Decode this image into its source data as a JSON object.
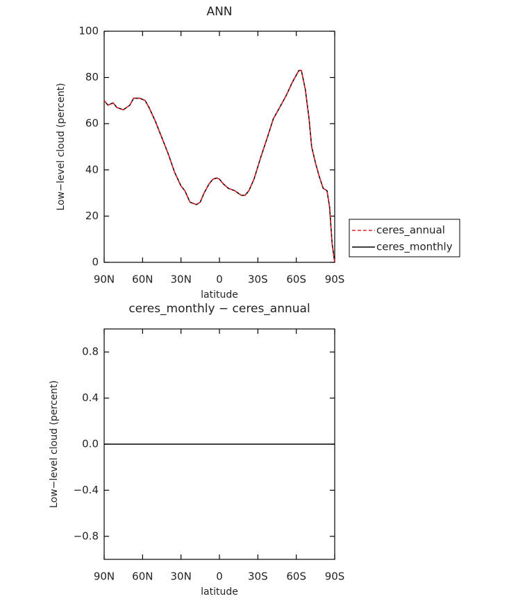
{
  "chart_data": [
    {
      "type": "line",
      "title": "ANN",
      "xlabel": "latitude",
      "ylabel": "Low−level cloud (percent)",
      "x": [
        90,
        87,
        83,
        80,
        75,
        70,
        67,
        62,
        58,
        55,
        50,
        45,
        40,
        35,
        30,
        27,
        23,
        18,
        15,
        12,
        8,
        5,
        2,
        0,
        -3,
        -7,
        -12,
        -17,
        -20,
        -23,
        -27,
        -32,
        -38,
        -42,
        -47,
        -52,
        -57,
        -62,
        -64,
        -67,
        -70,
        -72,
        -75,
        -78,
        -81,
        -84,
        -86,
        -88,
        -90
      ],
      "series": [
        {
          "name": "ceres_annual",
          "color": "#e0242b",
          "line_style": "dashed",
          "values": [
            70,
            68,
            69,
            67,
            66,
            68,
            71,
            71,
            70,
            67,
            61,
            54,
            47,
            39,
            33,
            31,
            26,
            25,
            26,
            30,
            34,
            36,
            36.5,
            36,
            34,
            32,
            31,
            29,
            29,
            31,
            36,
            45,
            55,
            62,
            67,
            72,
            78,
            83,
            83,
            75,
            62,
            50,
            43,
            37,
            32,
            31,
            24,
            8,
            0
          ]
        },
        {
          "name": "ceres_monthly",
          "color": "#000000",
          "line_style": "solid",
          "values": [
            70,
            68,
            69,
            67,
            66,
            68,
            71,
            71,
            70,
            67,
            61,
            54,
            47,
            39,
            33,
            31,
            26,
            25,
            26,
            30,
            34,
            36,
            36.5,
            36,
            34,
            32,
            31,
            29,
            29,
            31,
            36,
            45,
            55,
            62,
            67,
            72,
            78,
            83,
            83,
            75,
            62,
            50,
            43,
            37,
            32,
            31,
            24,
            8,
            0
          ]
        }
      ],
      "xlim": [
        90,
        -90
      ],
      "xticks": [
        {
          "value": 90,
          "label": "90N"
        },
        {
          "value": 60,
          "label": "60N"
        },
        {
          "value": 30,
          "label": "30N"
        },
        0,
        {
          "value": -30,
          "label": "30S"
        },
        {
          "value": -60,
          "label": "60S"
        },
        {
          "value": -90,
          "label": "90S"
        }
      ],
      "ylim": [
        0,
        100
      ],
      "yticks": [
        0,
        20,
        40,
        60,
        80,
        100
      ],
      "legend": "right"
    },
    {
      "type": "line",
      "title": "ceres_monthly − ceres_annual",
      "xlabel": "latitude",
      "ylabel": "Low−level cloud (percent)",
      "x": [
        90,
        -90
      ],
      "series": [
        {
          "color": "#000000",
          "line_style": "solid",
          "values": [
            0,
            0
          ]
        }
      ],
      "xlim": [
        90,
        -90
      ],
      "xticks": [
        {
          "value": 90,
          "label": "90N"
        },
        {
          "value": 60,
          "label": "60N"
        },
        {
          "value": 30,
          "label": "30N"
        },
        0,
        {
          "value": -30,
          "label": "30S"
        },
        {
          "value": -60,
          "label": "60S"
        },
        {
          "value": -90,
          "label": "90S"
        }
      ],
      "ylim": [
        -1,
        1
      ],
      "yticks": [
        {
          "value": -0.8,
          "label": "−0.8"
        },
        {
          "value": -0.4,
          "label": "−0.4"
        },
        {
          "value": 0,
          "label": "0.0"
        },
        {
          "value": 0.4,
          "label": "0.4"
        },
        {
          "value": 0.8,
          "label": "0.8"
        }
      ]
    }
  ]
}
